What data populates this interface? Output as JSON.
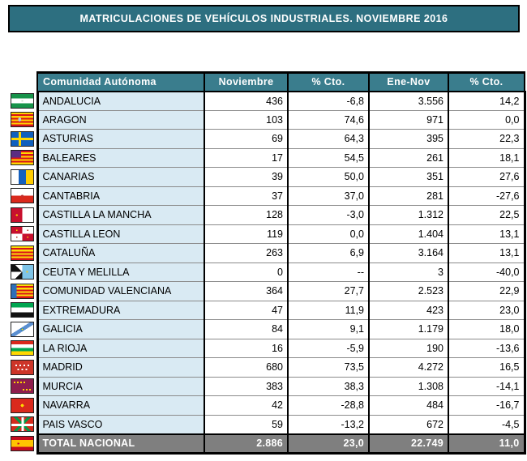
{
  "title": "MATRICULACIONES DE VEHÍCULOS INDUSTRIALES. NOVIEMBRE 2016",
  "colors": {
    "title_bg": "#2d6f80",
    "header_bg": "#3a7d8d",
    "row_label_bg": "#d9eaf3",
    "total_bg": "#7f7f7f",
    "grid": "#8b8b8b",
    "border": "#000000"
  },
  "table": {
    "columns": [
      "Comunidad Autónoma",
      "Noviembre",
      "% Cto.",
      "Ene-Nov",
      "% Cto."
    ],
    "rows": [
      {
        "flag": "andalucia",
        "region": "ANDALUCIA",
        "noviembre": "436",
        "pct_nov": "-6,8",
        "ene_nov": "3.556",
        "pct_ene": "14,2"
      },
      {
        "flag": "aragon",
        "region": "ARAGON",
        "noviembre": "103",
        "pct_nov": "74,6",
        "ene_nov": "971",
        "pct_ene": "0,0"
      },
      {
        "flag": "asturias",
        "region": "ASTURIAS",
        "noviembre": "69",
        "pct_nov": "64,3",
        "ene_nov": "395",
        "pct_ene": "22,3"
      },
      {
        "flag": "baleares",
        "region": "BALEARES",
        "noviembre": "17",
        "pct_nov": "54,5",
        "ene_nov": "261",
        "pct_ene": "18,1"
      },
      {
        "flag": "canarias",
        "region": "CANARIAS",
        "noviembre": "39",
        "pct_nov": "50,0",
        "ene_nov": "351",
        "pct_ene": "27,6"
      },
      {
        "flag": "cantabria",
        "region": "CANTABRIA",
        "noviembre": "37",
        "pct_nov": "37,0",
        "ene_nov": "281",
        "pct_ene": "-27,6"
      },
      {
        "flag": "castilla-la-mancha",
        "region": "CASTILLA LA MANCHA",
        "noviembre": "128",
        "pct_nov": "-3,0",
        "ene_nov": "1.312",
        "pct_ene": "22,5"
      },
      {
        "flag": "castilla-leon",
        "region": "CASTILLA LEON",
        "noviembre": "119",
        "pct_nov": "0,0",
        "ene_nov": "1.404",
        "pct_ene": "13,1"
      },
      {
        "flag": "cataluna",
        "region": "CATALUÑA",
        "noviembre": "263",
        "pct_nov": "6,9",
        "ene_nov": "3.164",
        "pct_ene": "13,1"
      },
      {
        "flag": "ceuta-y-melilla",
        "region": "CEUTA Y MELILLA",
        "noviembre": "0",
        "pct_nov": "--",
        "ene_nov": "3",
        "pct_ene": "-40,0"
      },
      {
        "flag": "valenciana",
        "region": "COMUNIDAD VALENCIANA",
        "noviembre": "364",
        "pct_nov": "27,7",
        "ene_nov": "2.523",
        "pct_ene": "22,9"
      },
      {
        "flag": "extremadura",
        "region": "EXTREMADURA",
        "noviembre": "47",
        "pct_nov": "11,9",
        "ene_nov": "423",
        "pct_ene": "23,0"
      },
      {
        "flag": "galicia",
        "region": "GALICIA",
        "noviembre": "84",
        "pct_nov": "9,1",
        "ene_nov": "1.179",
        "pct_ene": "18,0"
      },
      {
        "flag": "la-rioja",
        "region": "LA RIOJA",
        "noviembre": "16",
        "pct_nov": "-5,9",
        "ene_nov": "190",
        "pct_ene": "-13,6"
      },
      {
        "flag": "madrid",
        "region": "MADRID",
        "noviembre": "680",
        "pct_nov": "73,5",
        "ene_nov": "4.272",
        "pct_ene": "16,5"
      },
      {
        "flag": "murcia",
        "region": "MURCIA",
        "noviembre": "383",
        "pct_nov": "38,3",
        "ene_nov": "1.308",
        "pct_ene": "-14,1"
      },
      {
        "flag": "navarra",
        "region": "NAVARRA",
        "noviembre": "42",
        "pct_nov": "-28,8",
        "ene_nov": "484",
        "pct_ene": "-16,7"
      },
      {
        "flag": "pais-vasco",
        "region": "PAIS VASCO",
        "noviembre": "59",
        "pct_nov": "-13,2",
        "ene_nov": "672",
        "pct_ene": "-4,5"
      },
      {
        "flag": "espana",
        "region": "TOTAL NACIONAL",
        "noviembre": "2.886",
        "pct_nov": "23,0",
        "ene_nov": "22.749",
        "pct_ene": "11,0",
        "total": true
      }
    ]
  }
}
